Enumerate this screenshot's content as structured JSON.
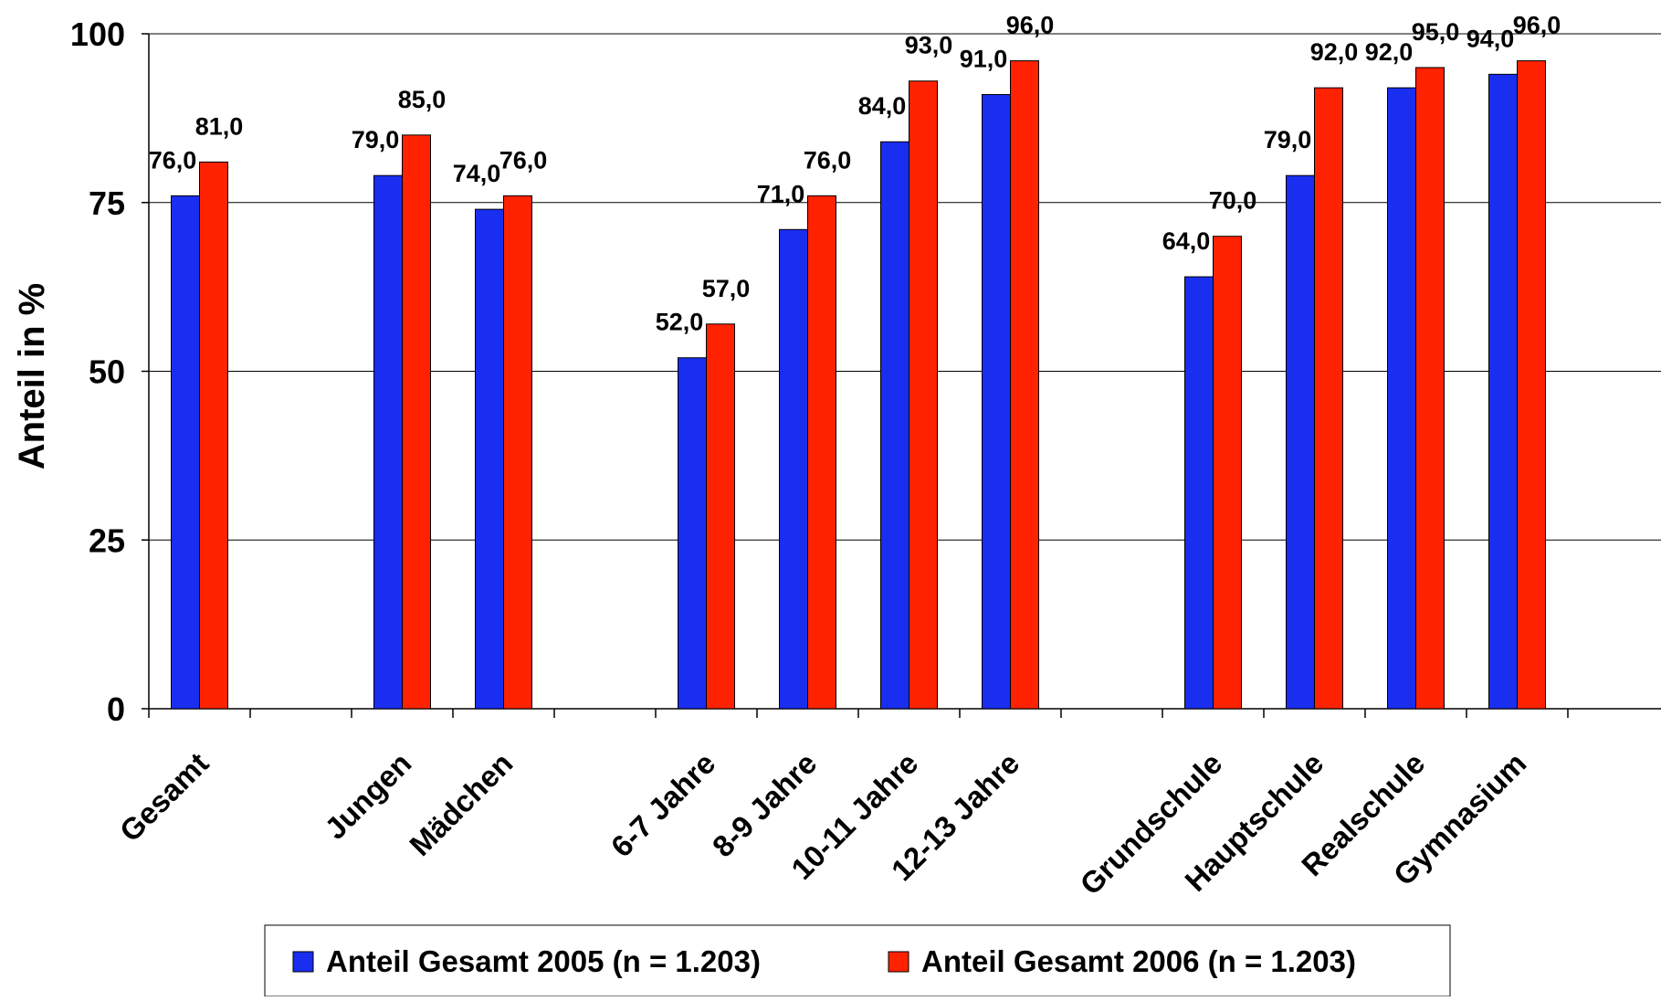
{
  "chart_data": {
    "type": "bar",
    "title": "",
    "xlabel": "",
    "ylabel": "Anteil in %",
    "ylim": [
      0,
      100
    ],
    "yticks": [
      0,
      25,
      50,
      75,
      100
    ],
    "grid": true,
    "legend_position": "bottom",
    "categories": [
      "Gesamt",
      "",
      "Jungen",
      "Mädchen",
      "",
      "6-7 Jahre",
      "8-9 Jahre",
      "10-11 Jahre",
      "12-13 Jahre",
      "",
      "Grundschule",
      "Hauptschule",
      "Realschule",
      "Gymnasium"
    ],
    "series": [
      {
        "name": "Anteil Gesamt 2005 (n = 1.203)",
        "color": "#1a2ef0",
        "values": [
          76.0,
          null,
          79.0,
          74.0,
          null,
          52.0,
          71.0,
          84.0,
          91.0,
          null,
          64.0,
          79.0,
          92.0,
          94.0
        ],
        "labels": [
          "76,0",
          "",
          "79,0",
          "74,0",
          "",
          "52,0",
          "71,0",
          "84,0",
          "91,0",
          "",
          "64,0",
          "79,0",
          "92,0",
          "94,0"
        ]
      },
      {
        "name": "Anteil Gesamt 2006 (n = 1.203)",
        "color": "#ff2200",
        "values": [
          81.0,
          null,
          85.0,
          76.0,
          null,
          57.0,
          76.0,
          93.0,
          96.0,
          null,
          70.0,
          92.0,
          95.0,
          96.0
        ],
        "labels": [
          "81,0",
          "",
          "85,0",
          "76,0",
          "",
          "57,0",
          "76,0",
          "93,0",
          "96,0",
          "",
          "70,0",
          "92,0",
          "95,0",
          "96,0"
        ]
      }
    ]
  }
}
